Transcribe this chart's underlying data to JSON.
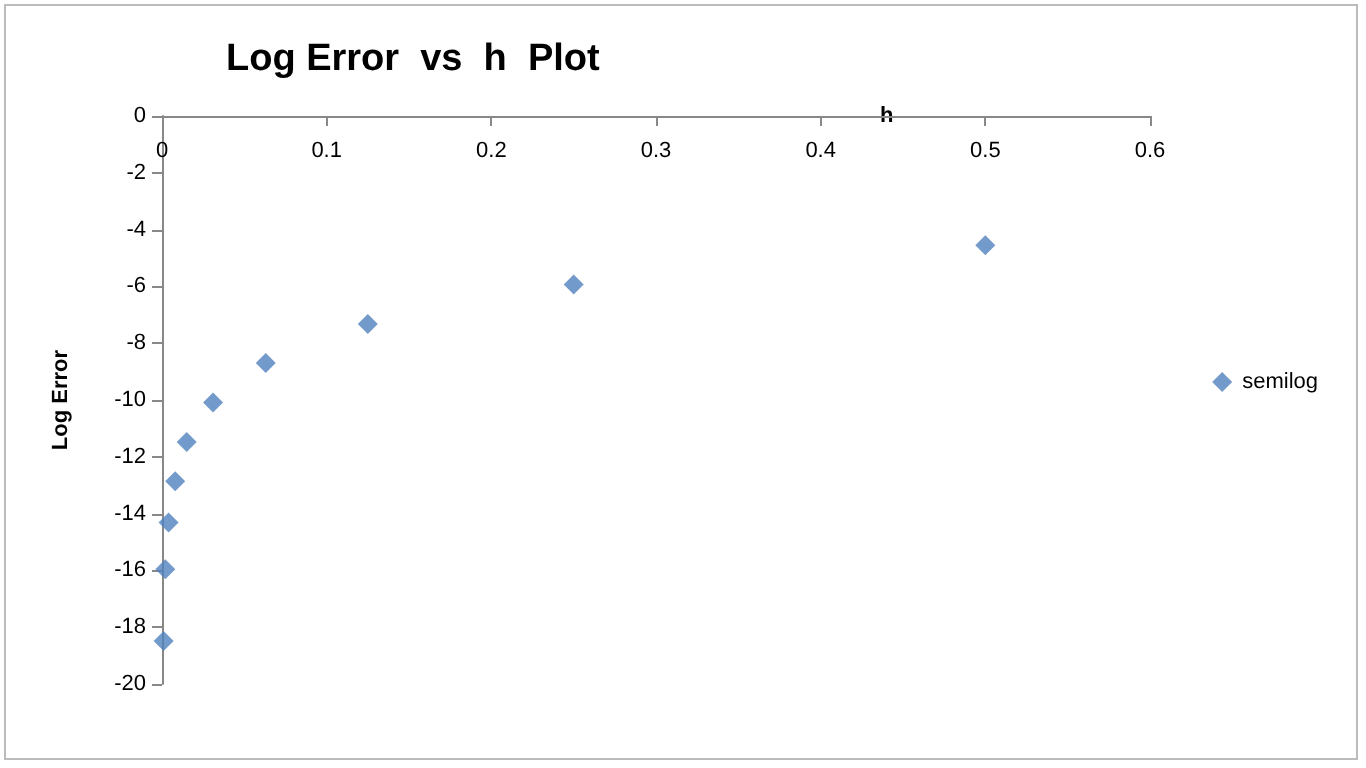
{
  "chart_data": {
    "type": "scatter",
    "title": "Log Error  vs  h  Plot",
    "xlabel": "h",
    "ylabel": "Log Error",
    "x": [
      0.5,
      0.25,
      0.125,
      0.063,
      0.031,
      0.015,
      0.008,
      0.004,
      0.002,
      0.001
    ],
    "series": [
      {
        "name": "semilog",
        "color": "#4f81bd",
        "values": [
          -4.55,
          -5.93,
          -7.32,
          -8.7,
          -10.09,
          -11.48,
          -12.86,
          -14.31,
          -15.96,
          -18.49
        ]
      }
    ],
    "xlim": [
      0,
      0.6
    ],
    "xticks": [
      0,
      0.1,
      0.2,
      0.3,
      0.4,
      0.5,
      0.6
    ],
    "ylim": [
      -20,
      0
    ],
    "yticks": [
      -20,
      -18,
      -16,
      -14,
      -12,
      -10,
      -8,
      -6,
      -4,
      -2,
      0
    ],
    "grid": false,
    "legend": "right",
    "marker": "diamond"
  }
}
